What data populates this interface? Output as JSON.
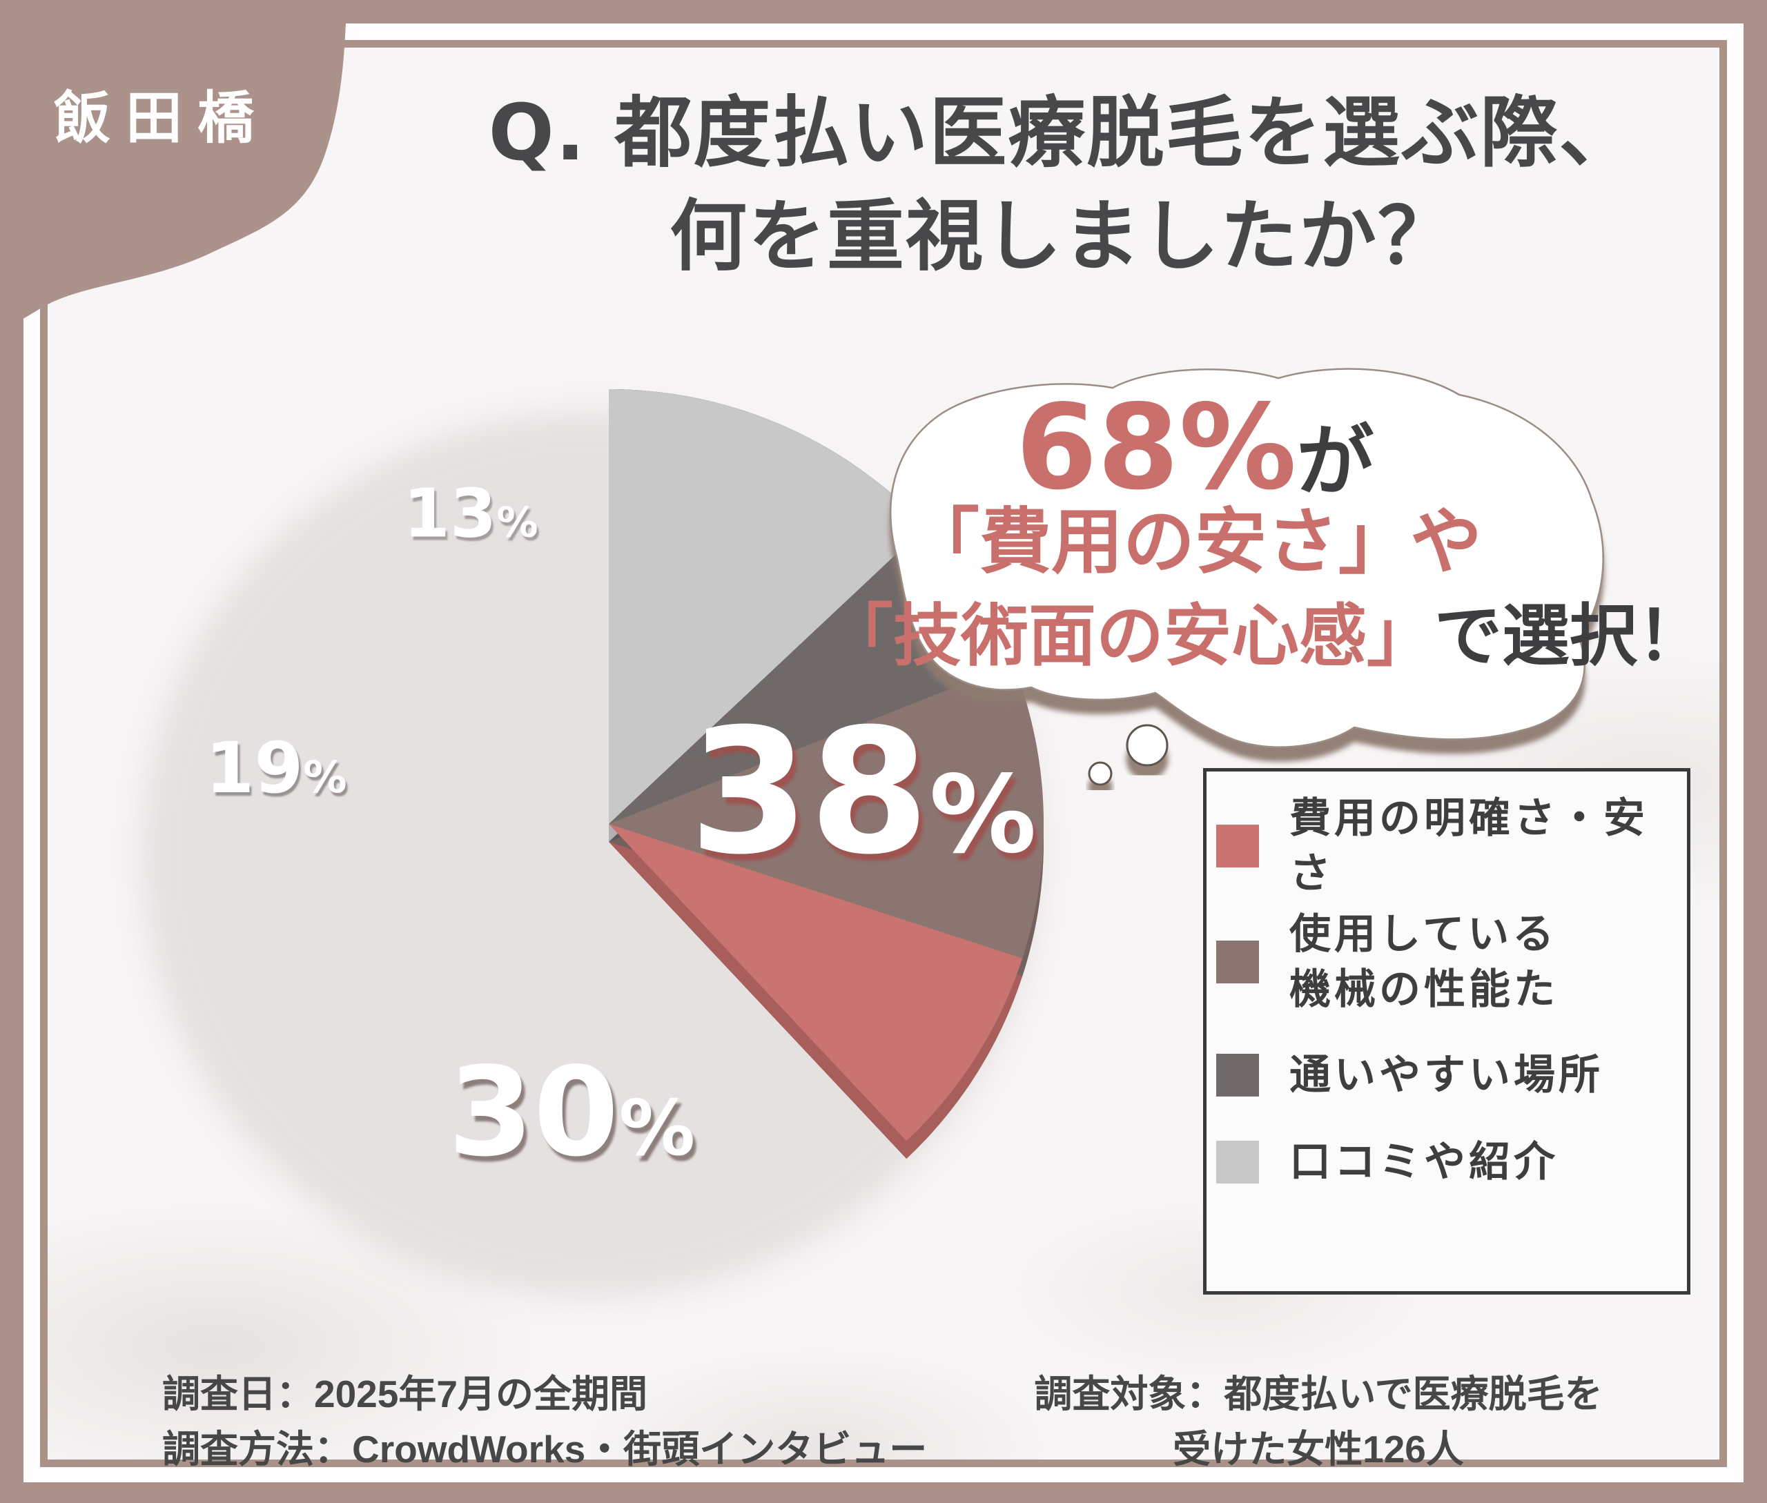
{
  "brand": {
    "name": "飯田橋"
  },
  "title": {
    "line1": "Q. 都度払い医療脱毛を選ぶ際、",
    "line2": "何を重視しましたか？"
  },
  "bubble": {
    "line1_highlight": "68%",
    "line1_rest": "が",
    "line2": "「費用の安さ」や",
    "line3_highlight": "「技術面の安心感」",
    "line3_rest": "で選択！",
    "highlight_color": "#c9706c",
    "text_color": "#3e3d3f"
  },
  "chart_data": {
    "type": "pie",
    "title": "Q. 都度払い医療脱毛を選ぶ際、何を重視しましたか？",
    "categories": [
      "費用の明確さ・安さ",
      "使用している機械の性能た",
      "通いやすい場所",
      "口コミや紹介"
    ],
    "values": [
      38,
      30,
      19,
      13
    ],
    "unit": "%",
    "colors": [
      "#c97471",
      "#8b7571",
      "#6f6969",
      "#c9c8c8"
    ],
    "rim_colors": [
      "#a85f5c",
      "#73615d",
      "#5c5757",
      "#b2b0b0"
    ],
    "start_angle_deg": 0,
    "direction": "clockwise",
    "legend_position": "right"
  },
  "legend": {
    "items": [
      {
        "label": "費用の明確さ・安さ",
        "color": "#c97471"
      },
      {
        "label": "使用している\n機械の性能た",
        "color": "#8b7571"
      },
      {
        "label": "通いやすい場所",
        "color": "#6f6969"
      },
      {
        "label": "口コミや紹介",
        "color": "#c9c8c8"
      }
    ]
  },
  "footnotes": {
    "left_line1": "調査日：2025年7月の全期間",
    "left_line2": "調査方法：CrowdWorks・街頭インタビュー",
    "right_line1": "調査対象：都度払いで医療脱毛を",
    "right_line2": "受けた女性126人"
  },
  "colors": {
    "frame": "#aa9189",
    "content_bg": "#f7f5f5",
    "title_text": "#48474a",
    "legend_text": "#3e3e40",
    "notes_text": "#474747",
    "bubble_shadow": "#8d7a70"
  }
}
